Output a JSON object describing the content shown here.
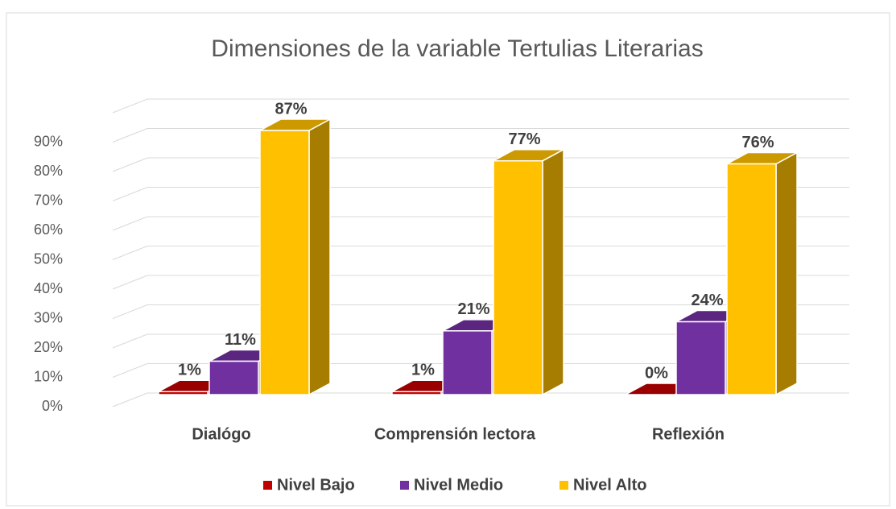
{
  "chart_data": {
    "type": "bar3d",
    "title": "Dimensiones de la variable Tertulias Literarias",
    "categories": [
      "Dialógo",
      "Comprensión lectora",
      "Reflexión"
    ],
    "series": [
      {
        "name": "Nivel Bajo",
        "color": "#c00000",
        "values": [
          1,
          1,
          0
        ],
        "value_labels": [
          "1%",
          "1%",
          "0%"
        ]
      },
      {
        "name": "Nivel Medio",
        "color": "#7030a0",
        "values": [
          11,
          21,
          24
        ],
        "value_labels": [
          "11%",
          "21%",
          "24%"
        ]
      },
      {
        "name": "Nivel Alto",
        "color": "#ffc000",
        "values": [
          87,
          77,
          76
        ],
        "value_labels": [
          "87%",
          "77%",
          "76%"
        ]
      }
    ],
    "ylim": [
      0,
      100
    ],
    "yticks": [
      {
        "value": 0,
        "label": "0%"
      },
      {
        "value": 10,
        "label": "10%"
      },
      {
        "value": 20,
        "label": "20%"
      },
      {
        "value": 30,
        "label": "30%"
      },
      {
        "value": 40,
        "label": "40%"
      },
      {
        "value": 50,
        "label": "50%"
      },
      {
        "value": 60,
        "label": "60%"
      },
      {
        "value": 70,
        "label": "70%"
      },
      {
        "value": 80,
        "label": "80%"
      },
      {
        "value": 90,
        "label": "90%"
      }
    ],
    "grid": true,
    "legend": "bottom"
  }
}
